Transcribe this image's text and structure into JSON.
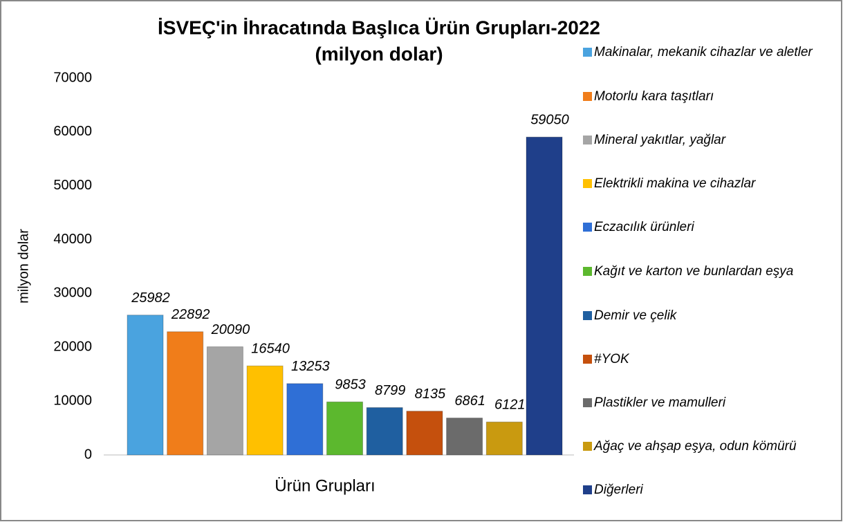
{
  "chart_data": {
    "type": "bar",
    "title": "İSVEÇ'in İhracatında Başlıca Ürün Grupları-2022",
    "subtitle": "(milyon dolar)",
    "xlabel": "Ürün Grupları",
    "ylabel": "milyon dolar",
    "ylim": [
      0,
      70000
    ],
    "yticks": [
      0,
      10000,
      20000,
      30000,
      40000,
      50000,
      60000,
      70000
    ],
    "grid": false,
    "legend": "right",
    "series": [
      {
        "name": "Makinalar, mekanik cihazlar ve aletler",
        "color": "#4aa3df",
        "values": [
          25982
        ]
      },
      {
        "name": "Motorlu kara taşıtları",
        "color": "#f07d1a",
        "values": [
          22892
        ]
      },
      {
        "name": "Mineral yakıtlar, yağlar",
        "color": "#a5a5a5",
        "values": [
          20090
        ]
      },
      {
        "name": "Elektrikli makina ve cihazlar",
        "color": "#ffc000",
        "values": [
          16540
        ]
      },
      {
        "name": "Eczacılık ürünleri",
        "color": "#2f6fd6",
        "values": [
          13253
        ]
      },
      {
        "name": "Kağıt ve karton ve bunlardan eşya",
        "color": "#5cb82e",
        "values": [
          9853
        ]
      },
      {
        "name": "Demir ve çelik",
        "color": "#1f5fa0",
        "values": [
          8799
        ]
      },
      {
        "name": "#YOK",
        "color": "#c5500d",
        "values": [
          8135
        ]
      },
      {
        "name": "Plastikler ve mamulleri",
        "color": "#6b6b6b",
        "values": [
          6861
        ]
      },
      {
        "name": "Ağaç ve ahşap eşya, odun kömürü",
        "color": "#c99a10",
        "values": [
          6121
        ]
      },
      {
        "name": "Diğerleri",
        "color": "#1f3f8a",
        "values": [
          59050
        ]
      }
    ]
  }
}
